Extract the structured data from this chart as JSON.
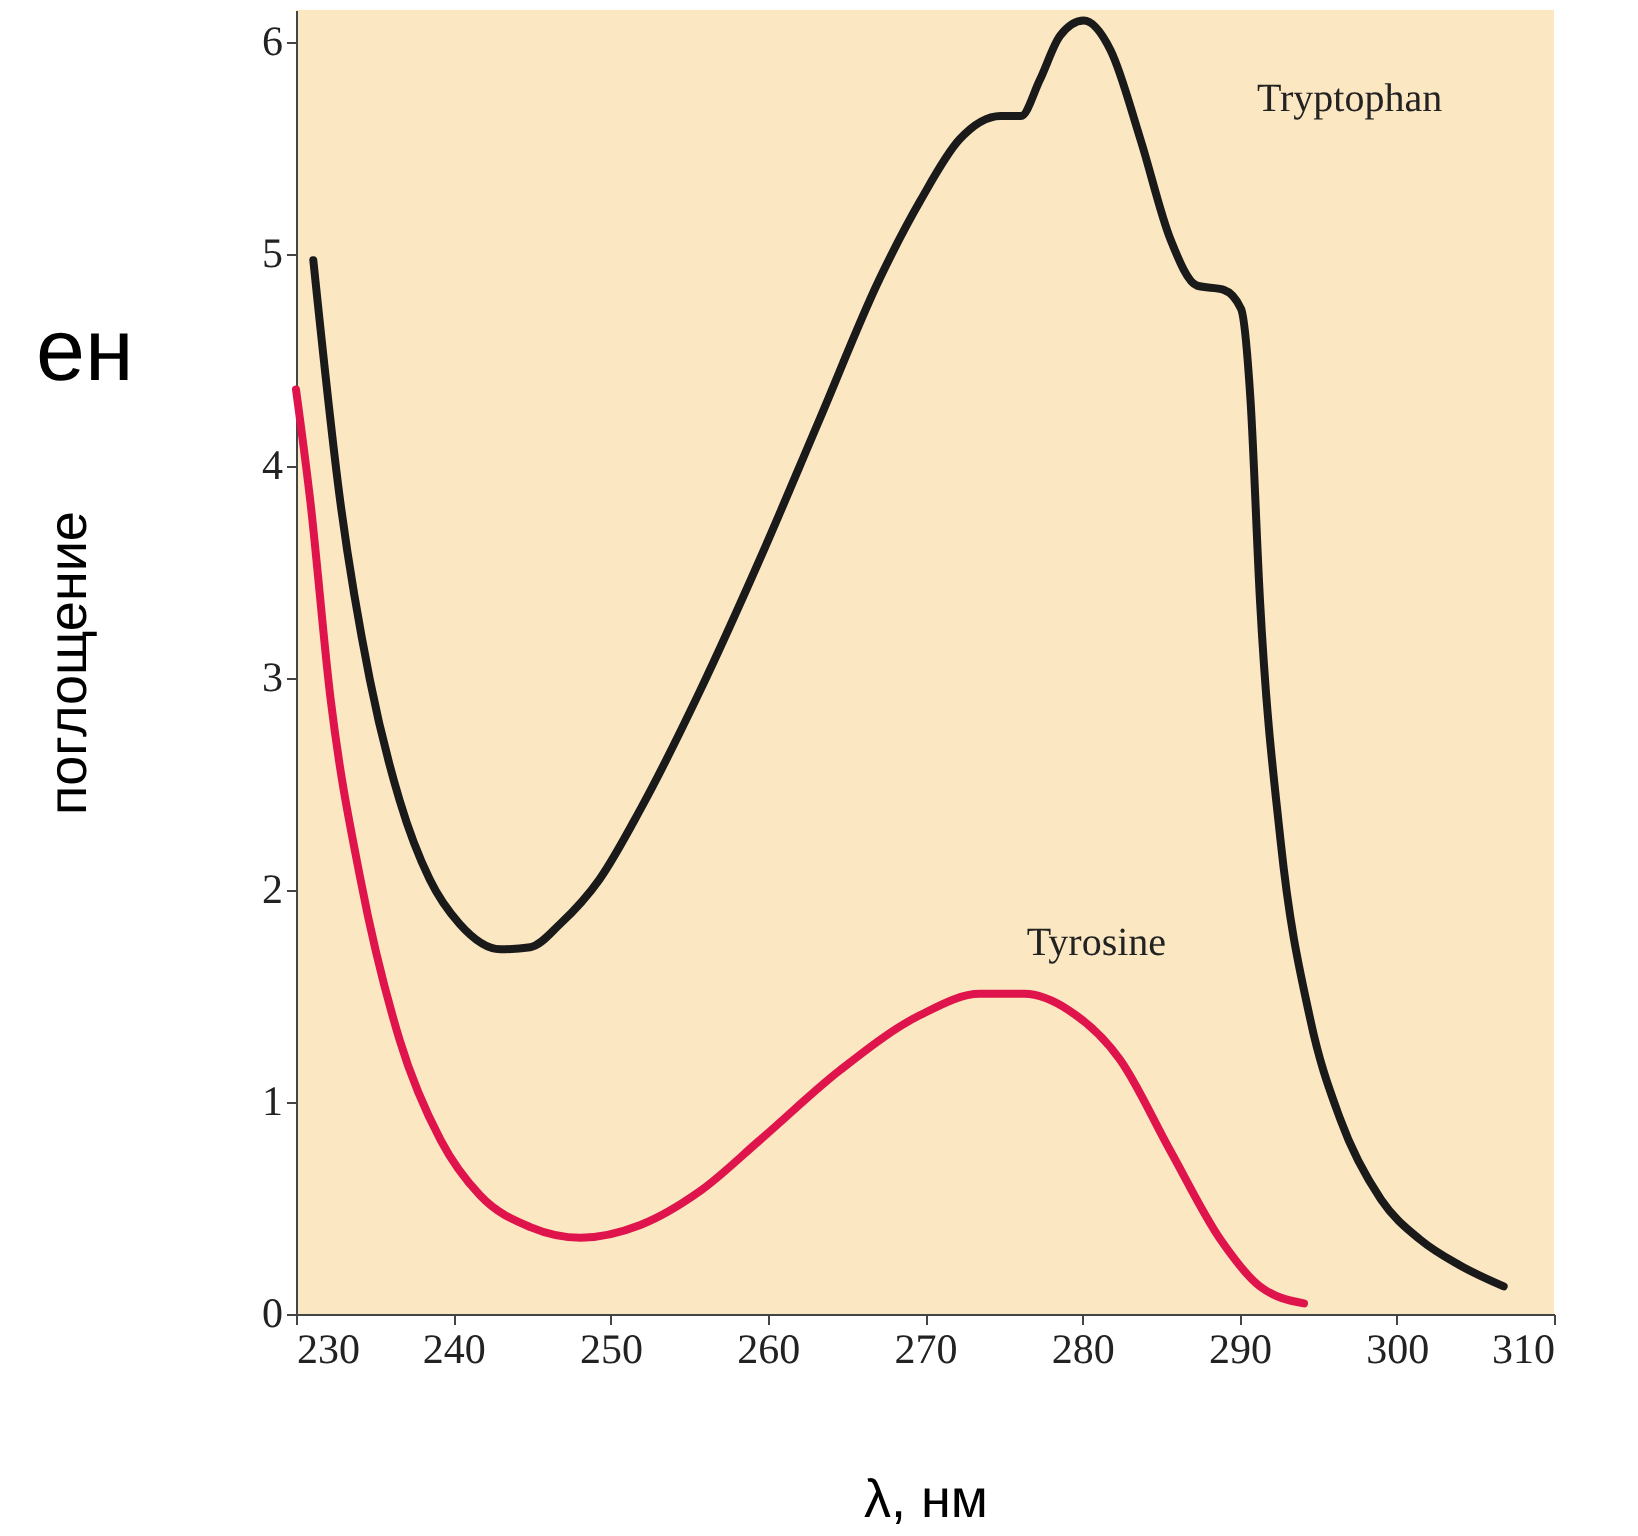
{
  "chart_data": {
    "type": "line",
    "xlabel": "λ, нм",
    "ylabel": "поглощение",
    "annotations": [
      "ен"
    ],
    "xlim": [
      230,
      310
    ],
    "xticks": [
      230,
      240,
      250,
      260,
      270,
      280,
      290,
      300,
      310
    ],
    "ylim": [
      0,
      6.15
    ],
    "yticks": [
      0,
      1,
      2,
      3,
      4,
      5,
      6
    ],
    "grid": false,
    "legend": false,
    "marker": "none",
    "line_style": "solid",
    "series": [
      {
        "name": "Tryptophan",
        "color": "#1a1a1a",
        "x": [
          231.1,
          232.8,
          234.7,
          236.6,
          238.5,
          240.4,
          243.0,
          244.9,
          246.8,
          249.3,
          251.9,
          255.7,
          259.5,
          263.3,
          267.1,
          269.7,
          272.2,
          274.8,
          276.1,
          277.3,
          278.6,
          280.1,
          281.8,
          283.7,
          285.6,
          287.3,
          289.0,
          290.1,
          290.7,
          291.3,
          292.6,
          294.5,
          296.4,
          299.0,
          301.5,
          304.0,
          306.8
        ],
        "values": [
          4.97,
          3.84,
          2.99,
          2.42,
          2.05,
          1.84,
          1.72,
          1.73,
          1.84,
          2.05,
          2.38,
          2.94,
          3.56,
          4.22,
          4.88,
          5.25,
          5.54,
          5.65,
          5.65,
          5.82,
          6.03,
          6.1,
          5.96,
          5.54,
          5.07,
          4.85,
          4.83,
          4.74,
          4.31,
          3.37,
          2.24,
          1.39,
          0.92,
          0.54,
          0.35,
          0.23,
          0.13
        ]
      },
      {
        "name": "Tyrosine",
        "color": "#e0144c",
        "x": [
          230.0,
          230.9,
          232.2,
          234.1,
          236.6,
          239.2,
          241.7,
          244.9,
          248.1,
          251.9,
          255.7,
          259.5,
          264.6,
          269.7,
          273.5,
          276.3,
          279.2,
          282.4,
          285.6,
          288.8,
          291.3,
          294.1
        ],
        "values": [
          4.36,
          3.84,
          2.9,
          2.05,
          1.29,
          0.82,
          0.56,
          0.41,
          0.36,
          0.42,
          0.58,
          0.82,
          1.15,
          1.41,
          1.51,
          1.51,
          1.43,
          1.2,
          0.77,
          0.35,
          0.13,
          0.05
        ]
      }
    ]
  }
}
